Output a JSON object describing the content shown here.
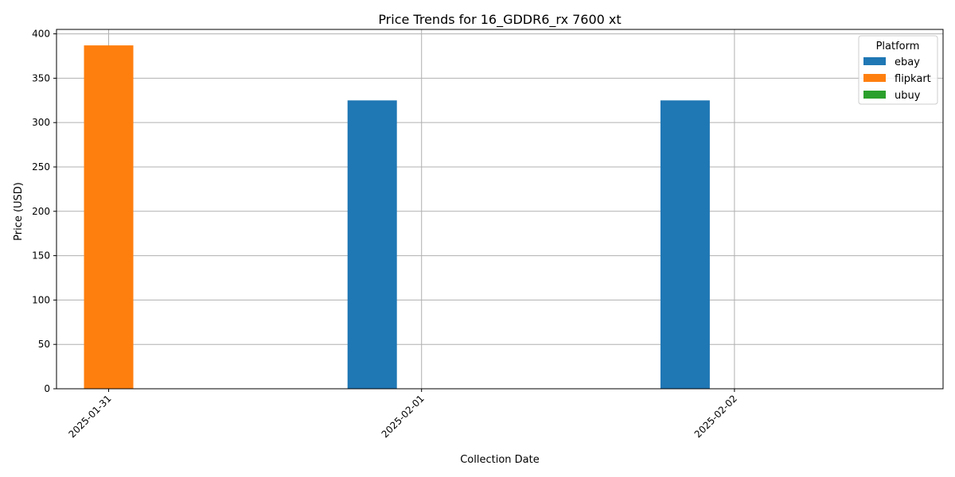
{
  "chart_data": {
    "type": "bar",
    "title": "Price Trends for 16_GDDR6_rx 7600 xt",
    "xlabel": "Collection Date",
    "ylabel": "Price (USD)",
    "categories": [
      "2025-01-31",
      "2025-02-01",
      "2025-02-02"
    ],
    "series": [
      {
        "name": "ebay",
        "color": "#1f77b4",
        "values": [
          0,
          325,
          325
        ]
      },
      {
        "name": "flipkart",
        "color": "#ff7f0e",
        "values": [
          387,
          0,
          0
        ]
      },
      {
        "name": "ubuy",
        "color": "#2ca02c",
        "values": [
          0,
          0,
          0
        ]
      }
    ],
    "ylim": [
      0,
      405
    ],
    "yticks": [
      0,
      50,
      100,
      150,
      200,
      250,
      300,
      350,
      400
    ],
    "grid": true,
    "legend": {
      "title": "Platform",
      "position": "top-right"
    }
  }
}
